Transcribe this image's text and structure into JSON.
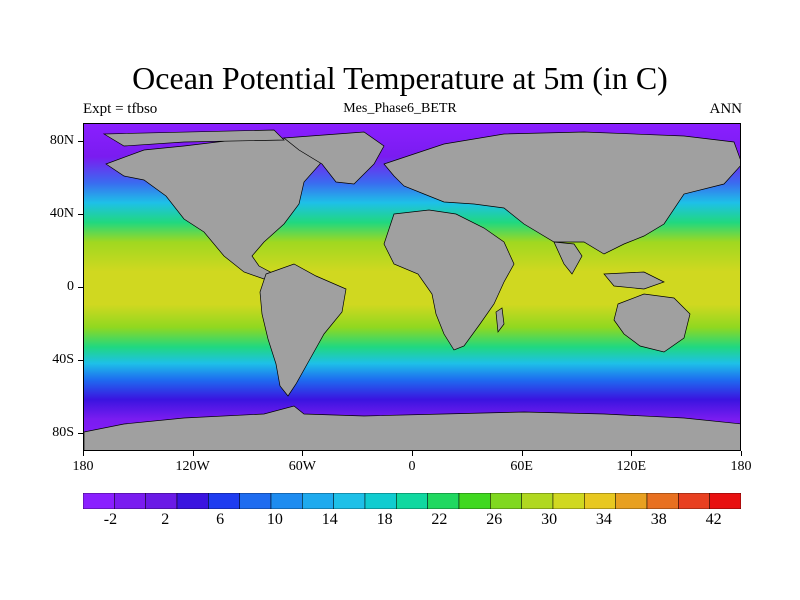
{
  "title": "Ocean Potential Temperature at 5m (in C)",
  "left_label": "Expt = tfbso",
  "center_label": "Mes_Phase6_BETR",
  "right_label": "ANN",
  "lat_labels": [
    {
      "text": "80N",
      "lat": 80
    },
    {
      "text": "40N",
      "lat": 40
    },
    {
      "text": "0",
      "lat": 0
    },
    {
      "text": "40S",
      "lat": -40
    },
    {
      "text": "80S",
      "lat": -80
    }
  ],
  "lon_labels": [
    {
      "text": "180",
      "lon": -180
    },
    {
      "text": "120W",
      "lon": -120
    },
    {
      "text": "60W",
      "lon": -60
    },
    {
      "text": "0",
      "lon": 0
    },
    {
      "text": "60E",
      "lon": 60
    },
    {
      "text": "120E",
      "lon": 120
    },
    {
      "text": "180",
      "lon": 180
    }
  ],
  "colorbar": {
    "colors": [
      "#8a1fff",
      "#7a1cf0",
      "#6a1ae6",
      "#3a14e0",
      "#1e3cf0",
      "#1e6cf0",
      "#1e8cf0",
      "#1eaaee",
      "#1ec0e8",
      "#10ccd0",
      "#10d8a0",
      "#20d860",
      "#40d820",
      "#80d820",
      "#b0d820",
      "#d0d820",
      "#e8c820",
      "#e8a020",
      "#e87020",
      "#e84020",
      "#e81010"
    ],
    "labels": [
      {
        "text": "-2",
        "index": 1
      },
      {
        "text": "2",
        "index": 3
      },
      {
        "text": "6",
        "index": 5
      },
      {
        "text": "10",
        "index": 7
      },
      {
        "text": "14",
        "index": 9
      },
      {
        "text": "18",
        "index": 11
      },
      {
        "text": "22",
        "index": 13
      },
      {
        "text": "26",
        "index": 15
      },
      {
        "text": "30",
        "index": 17
      },
      {
        "text": "34",
        "index": 19
      },
      {
        "text": "38",
        "index": 21
      },
      {
        "text": "42",
        "index": 23
      }
    ]
  },
  "colors": {
    "land": "#a0a0a0",
    "coast": "#000000"
  }
}
